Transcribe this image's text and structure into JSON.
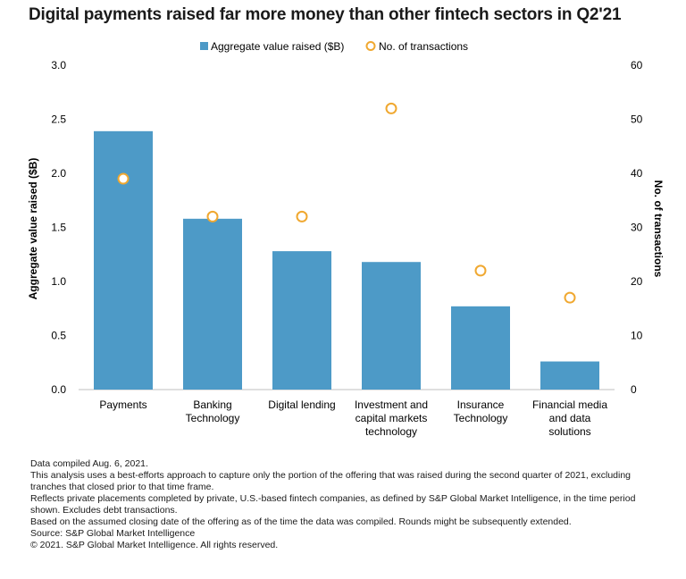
{
  "title": "Digital payments raised far more money than other fintech sectors in Q2'21",
  "chart_data": {
    "type": "bar",
    "categories": [
      [
        "Payments"
      ],
      [
        "Banking",
        "Technology"
      ],
      [
        "Digital lending"
      ],
      [
        "Investment and",
        "capital markets",
        "technology"
      ],
      [
        "Insurance",
        "Technology"
      ],
      [
        "Financial media",
        "and data",
        "solutions"
      ]
    ],
    "series": [
      {
        "name": "Aggregate value raised ($B)",
        "type": "bar",
        "axis": "left",
        "values": [
          2.39,
          1.58,
          1.28,
          1.18,
          0.77,
          0.26
        ],
        "color": "#4d9ac7"
      },
      {
        "name": "No. of transactions",
        "type": "scatter",
        "axis": "right",
        "values": [
          39,
          32,
          32,
          52,
          22,
          17
        ],
        "color": "#f0a830"
      }
    ],
    "ylabel": "Aggregate value raised ($B)",
    "y2label": "No. of transactions",
    "ylim": [
      0,
      3.0
    ],
    "y2lim": [
      0,
      60
    ],
    "yticks": [
      "0.0",
      "0.5",
      "1.0",
      "1.5",
      "2.0",
      "2.5",
      "3.0"
    ],
    "y2ticks": [
      "0",
      "10",
      "20",
      "30",
      "40",
      "50",
      "60"
    ],
    "legend_position": "top-center",
    "grid": false
  },
  "notes": [
    "Data compiled Aug. 6, 2021.",
    "This analysis uses a best-efforts approach to capture only the portion of the offering that was raised during the second quarter of 2021, excluding tranches that closed prior to that time frame.",
    "Reflects private placements completed by private, U.S.-based fintech companies, as defined by S&P Global Market Intelligence, in the time period shown. Excludes debt transactions.",
    "Based on the assumed closing date of the offering as of the time the data was compiled. Rounds might be subsequently extended.",
    "Source: S&P Global Market Intelligence",
    "© 2021. S&P Global Market Intelligence. All rights reserved."
  ]
}
